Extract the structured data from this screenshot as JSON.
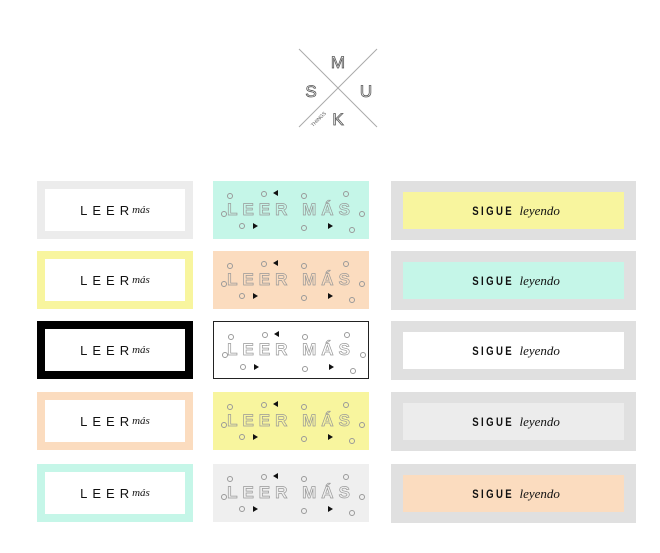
{
  "logo": {
    "letters": [
      "M",
      "S",
      "U",
      "K"
    ],
    "tagline": "THINGS"
  },
  "col1": {
    "label": "LEER",
    "italic": "más",
    "borders": [
      "#ececec",
      "#f8f59e",
      "#000000",
      "#fbdcbf",
      "#c5f6e8"
    ]
  },
  "col2": {
    "label": "LEER MÁS",
    "fills": [
      "#c5f6e8",
      "#fbdcbf",
      "#ffffff",
      "#f8f59e",
      "#efefef"
    ]
  },
  "col3": {
    "label": "SIGUE",
    "italic": "leyendo",
    "outer": "#e0e0e0",
    "fills": [
      "#f8f59e",
      "#c5f6e8",
      "#ffffff",
      "#ececec",
      "#fbdcbf"
    ]
  }
}
